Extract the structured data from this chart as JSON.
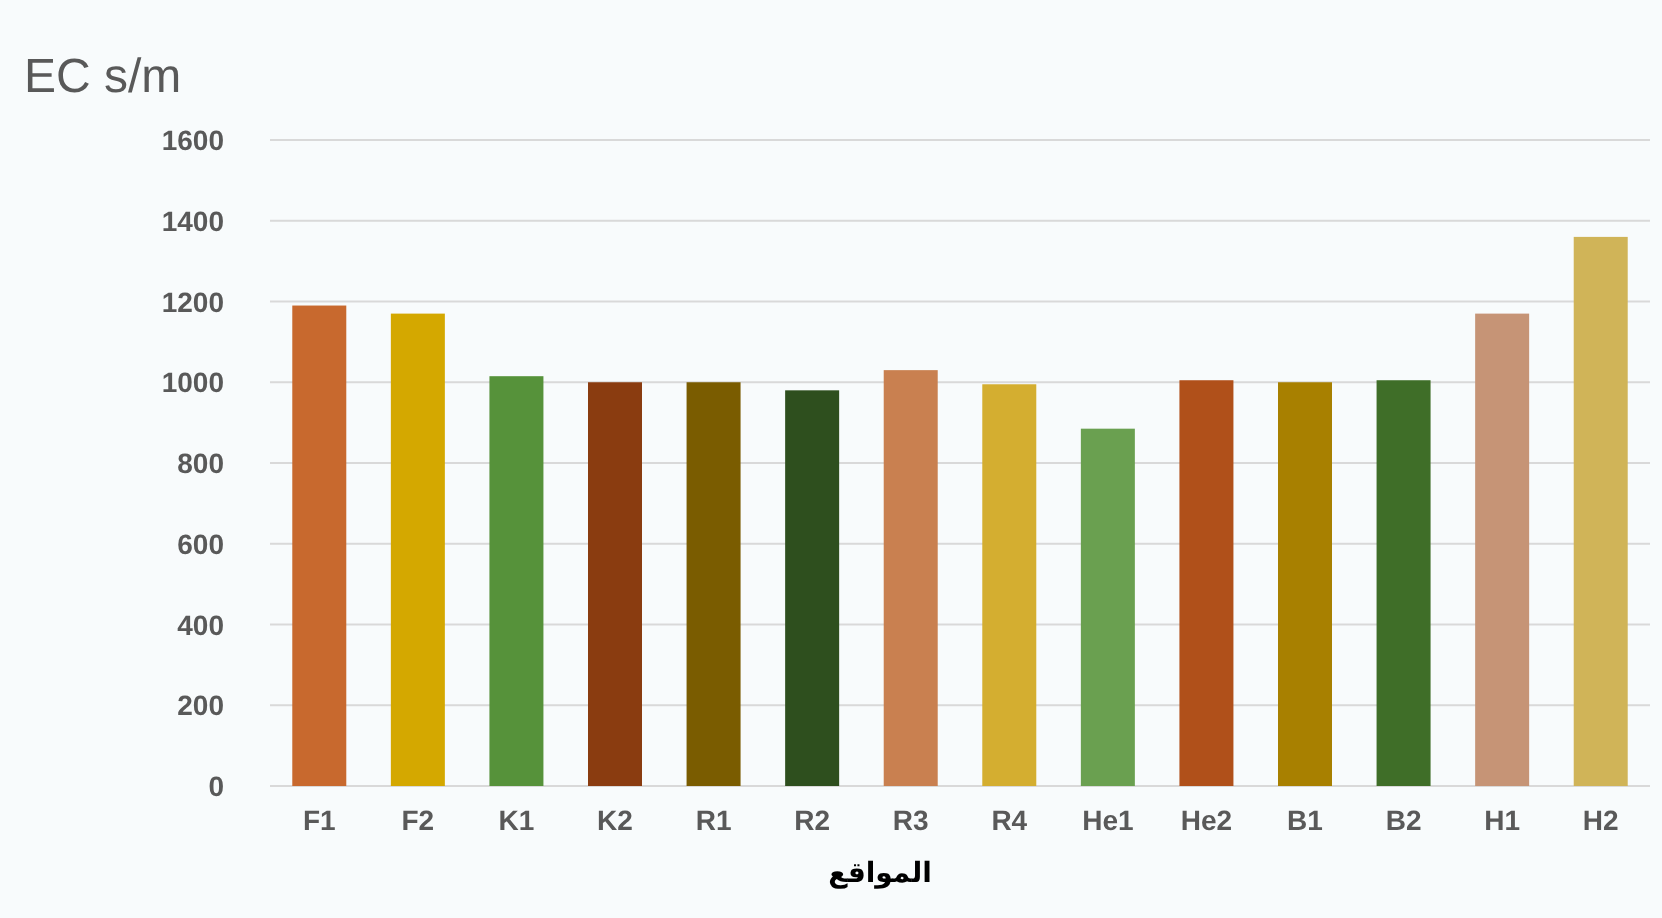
{
  "chart_data": {
    "type": "bar",
    "ylabel": "EC s/m",
    "xlabel": "المواقع",
    "categories": [
      "F1",
      "F2",
      "K1",
      "K2",
      "R1",
      "R2",
      "R3",
      "R4",
      "He1",
      "He2",
      "B1",
      "B2",
      "H1",
      "H2"
    ],
    "values": [
      1190,
      1170,
      1015,
      1000,
      1000,
      980,
      1030,
      995,
      885,
      1005,
      1000,
      1005,
      1170,
      1360
    ],
    "colors": [
      "#c8692e",
      "#d4a800",
      "#56923a",
      "#8a3c10",
      "#7a5c00",
      "#2e4f1e",
      "#c98050",
      "#d4ae30",
      "#6aa050",
      "#b0501a",
      "#a88000",
      "#3f6e28",
      "#c69476",
      "#d0b458"
    ],
    "ylim": [
      0,
      1600
    ],
    "yticks": [
      0,
      200,
      400,
      600,
      800,
      1000,
      1200,
      1400,
      1600
    ],
    "grid": "y"
  }
}
